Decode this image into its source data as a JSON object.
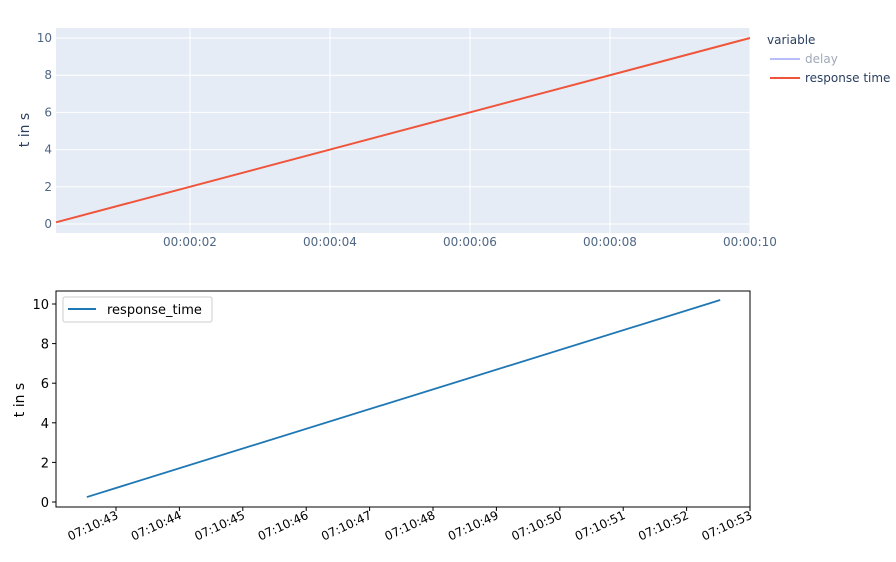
{
  "chart_data": [
    {
      "type": "line",
      "ylabel": "t in s",
      "xlabel": "",
      "ylim": [
        -0.5,
        10.5
      ],
      "xlim": [
        "00:00:00.086",
        "00:00:10"
      ],
      "x_tick_labels": [
        "00:00:02",
        "00:00:04",
        "00:00:06",
        "00:00:08",
        "00:00:10"
      ],
      "x_ticks_seconds": [
        2,
        4,
        6,
        8,
        10
      ],
      "y_ticks": [
        0,
        2,
        4,
        6,
        8,
        10
      ],
      "grid": true,
      "background": "#e5ecf6",
      "legend": {
        "title": "variable",
        "placement": "right",
        "entries": [
          {
            "name": "delay",
            "color": "#636efa",
            "hidden": true
          },
          {
            "name": "response time",
            "color": "#ef553b",
            "hidden": false
          }
        ]
      },
      "series": [
        {
          "name": "response time",
          "color": "#ef553b",
          "x_seconds": [
            0.086,
            10
          ],
          "y": [
            0.09,
            10
          ]
        }
      ]
    },
    {
      "type": "line",
      "ylabel": "t in s",
      "xlabel": "",
      "ylim": [
        -0.25,
        10.7
      ],
      "x_tick_labels": [
        "07:10:43",
        "07:10:44",
        "07:10:45",
        "07:10:46",
        "07:10:47",
        "07:10:48",
        "07:10:49",
        "07:10:50",
        "07:10:51",
        "07:10:52",
        "07:10:53"
      ],
      "y_ticks": [
        0,
        2,
        4,
        6,
        8,
        10
      ],
      "grid": false,
      "legend": {
        "placement": "top-left",
        "entries": [
          {
            "name": "response_time",
            "color": "#1f77b4"
          }
        ]
      },
      "series": [
        {
          "name": "response_time",
          "color": "#1f77b4",
          "x": [
            "07:10:42.54",
            "07:10:52.53"
          ],
          "y": [
            0.25,
            10.2
          ]
        }
      ]
    }
  ]
}
